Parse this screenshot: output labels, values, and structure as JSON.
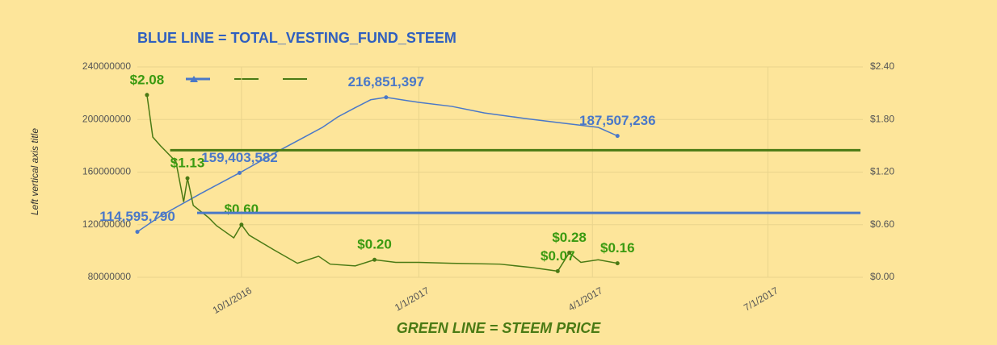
{
  "chart_data": {
    "type": "line",
    "title": "BLUE LINE = TOTAL_VESTING_FUND_STEEM",
    "x_label": "GREEN LINE = STEEM PRICE",
    "y_label": "Left vertical axis title",
    "xlim": [
      "8/8/2016",
      "8/18/2017"
    ],
    "xticks": [
      "10/1/2016",
      "1/1/2017",
      "4/1/2017",
      "7/1/2017"
    ],
    "ylim": [
      80000000,
      240000000
    ],
    "yticks": [
      80000000,
      120000000,
      160000000,
      200000000,
      240000000
    ],
    "y2lim": [
      0,
      2.4
    ],
    "y2ticks": [
      {
        "value": 0,
        "label": "$0.00"
      },
      {
        "value": 0.6,
        "label": "$0.60"
      },
      {
        "value": 1.2,
        "label": "$1.20"
      },
      {
        "value": 1.8,
        "label": "$1.80"
      },
      {
        "value": 2.4,
        "label": "$2.40"
      }
    ],
    "grid": true,
    "series": [
      {
        "color": "#4a78c8",
        "x": [
          "8/8/2016",
          "8/20/2016",
          "9/10/2016",
          "9/30/2016",
          "10/22/2016",
          "11/12/2016",
          "11/20/2016",
          "11/29/2016",
          "12/7/2016",
          "12/15/2016",
          "1/1/2017",
          "1/18/2017",
          "2/4/2017",
          "2/25/2017",
          "3/18/2017",
          "4/4/2017",
          "4/14/2017"
        ],
        "values": [
          114595790,
          126600000,
          143800000,
          159403582,
          177500000,
          194000000,
          202000000,
          209000000,
          215000000,
          216851397,
          213000000,
          210000000,
          205000000,
          200800000,
          197000000,
          194000000,
          187507236
        ],
        "value_labels": [
          "114,595,790",
          null,
          null,
          "159,403,582",
          null,
          null,
          null,
          null,
          null,
          "216,851,397",
          null,
          null,
          null,
          null,
          null,
          null,
          "187,507,236"
        ]
      },
      {
        "color": "#4a7a14",
        "axis": "y2",
        "x": [
          "8/13/2016",
          "8/16/2016",
          "8/20/2016",
          "8/28/2016",
          "9/1/2016",
          "9/3/2016",
          "9/6/2016",
          "9/14/2016",
          "9/18/2016",
          "9/27/2016",
          "10/1/2016",
          "10/5/2016",
          "10/18/2016",
          "10/30/2016",
          "11/10/2016",
          "11/16/2016",
          "11/29/2016",
          "12/9/2016",
          "12/20/2016",
          "1/1/2017",
          "1/18/2017",
          "2/12/2017",
          "3/1/2017",
          "3/14/2017",
          "3/20/2017",
          "3/26/2017",
          "4/4/2017",
          "4/14/2017"
        ],
        "values": [
          2.08,
          1.6,
          1.5,
          1.32,
          0.86,
          1.13,
          0.82,
          0.68,
          0.59,
          0.45,
          0.6,
          0.48,
          0.31,
          0.16,
          0.24,
          0.15,
          0.13,
          0.2,
          0.17,
          0.17,
          0.16,
          0.15,
          0.11,
          0.07,
          0.28,
          0.17,
          0.2,
          0.16
        ],
        "value_labels": [
          "$2.08",
          null,
          null,
          null,
          null,
          "$1.13",
          null,
          null,
          null,
          null,
          "$0.60",
          null,
          null,
          null,
          null,
          null,
          null,
          "$0.20",
          null,
          null,
          null,
          null,
          null,
          "$0.07",
          "$0.28",
          null,
          null,
          "$0.16"
        ]
      },
      {
        "color": "#4a78c8",
        "x": [
          "9/8/2016",
          "8/18/2017"
        ],
        "values": [
          129000000,
          129000000
        ]
      },
      {
        "color": "#4a7a14",
        "axis": "y2",
        "x": [
          "8/25/2016",
          "8/18/2017"
        ],
        "values": [
          1.45,
          1.45
        ]
      }
    ]
  }
}
